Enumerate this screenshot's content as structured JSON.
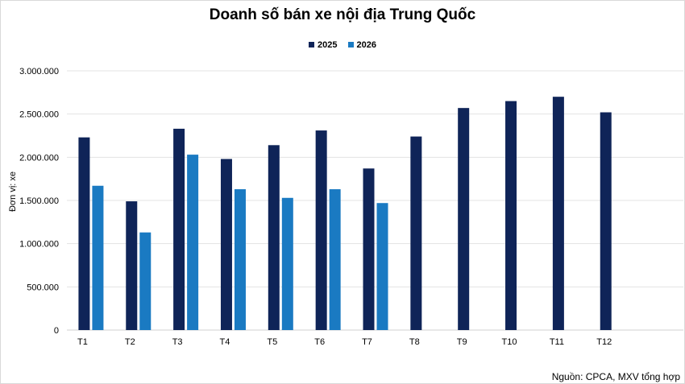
{
  "chart_data": {
    "type": "bar",
    "title": "Doanh số bán xe nội địa Trung Quốc",
    "ylabel": "Đơn vị: xe",
    "xlabel": "",
    "categories": [
      "T1",
      "T2",
      "T3",
      "T4",
      "T5",
      "T6",
      "T7",
      "T8",
      "T9",
      "T10",
      "T11",
      "T12"
    ],
    "series": [
      {
        "name": "2025",
        "color": "#0f2458",
        "values": [
          2230000,
          1490000,
          2330000,
          1980000,
          2140000,
          2310000,
          1870000,
          2240000,
          2570000,
          2650000,
          2700000,
          2520000
        ]
      },
      {
        "name": "2026",
        "color": "#1a7ac2",
        "values": [
          1670000,
          1130000,
          2030000,
          1630000,
          1530000,
          1630000,
          1470000,
          null,
          null,
          null,
          null,
          null
        ]
      }
    ],
    "ylim": [
      0,
      3000000
    ],
    "yticks": [
      0,
      500000,
      1000000,
      1500000,
      2000000,
      2500000,
      3000000
    ],
    "ytick_labels": [
      "0",
      "500.000",
      "1.000.000",
      "1.500.000",
      "2.000.000",
      "2.500.000",
      "3.000.000"
    ],
    "grid": true,
    "legend_position": "top-center",
    "source": "Nguồn: CPCA, MXV tổng hợp"
  }
}
